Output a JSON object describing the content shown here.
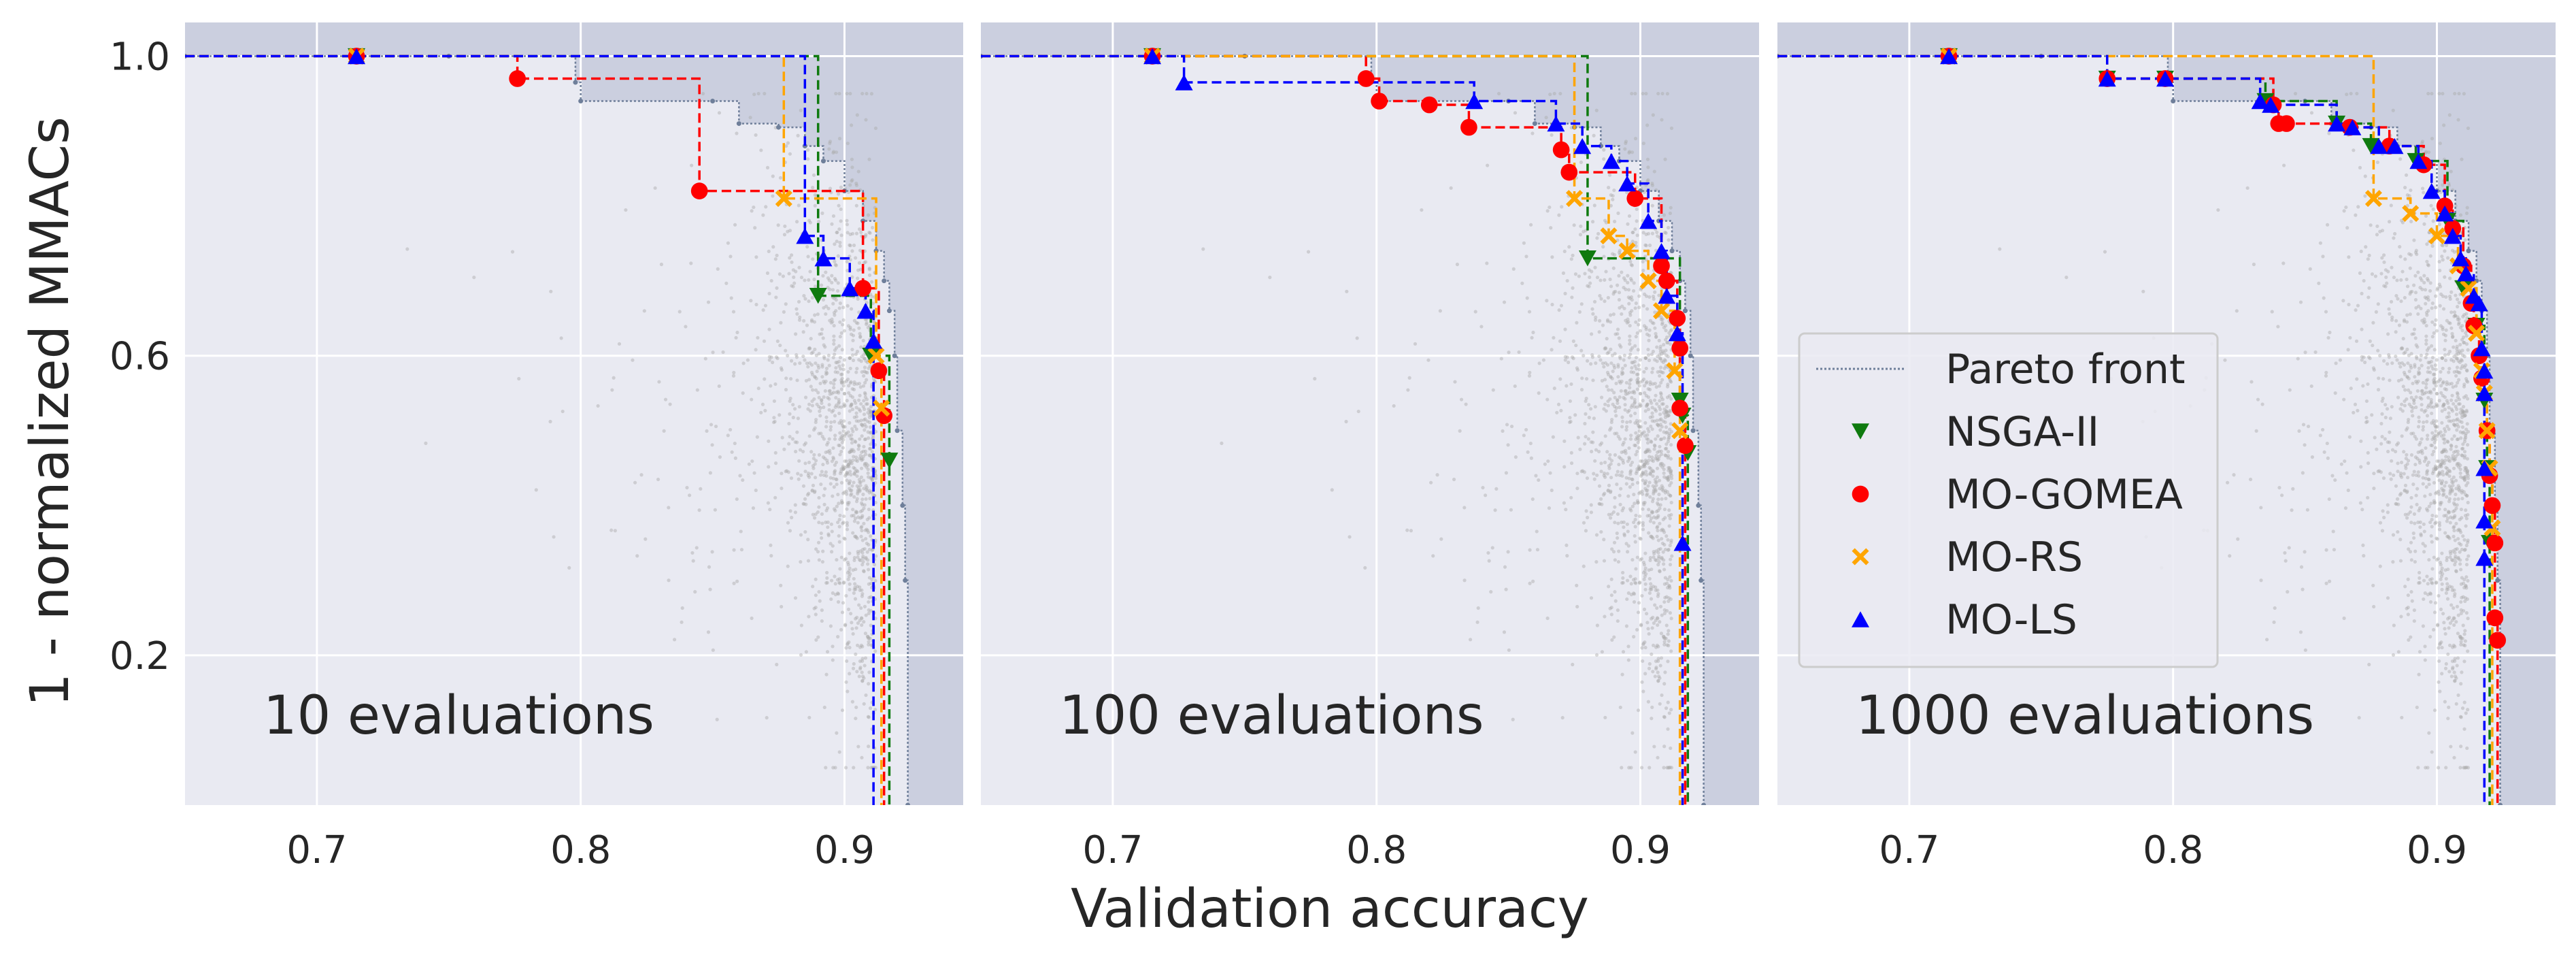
{
  "chart_data": {
    "type": "scatter",
    "ylabel": "1 - normalized MMACs",
    "xlabel": "Validation accuracy",
    "xticks": [
      0.7,
      0.8,
      0.9
    ],
    "xtick_labels": [
      "0.7",
      "0.8",
      "0.9"
    ],
    "yticks": [
      1.0,
      0.6,
      0.2
    ],
    "ytick_labels": [
      "1.0",
      "0.6",
      "0.2"
    ],
    "xlim": [
      0.65,
      0.945
    ],
    "ylim": [
      0.0,
      1.045
    ],
    "legend_position": "center-left of third panel",
    "legend": [
      {
        "label": "Pareto front",
        "color": "#6f7f9a",
        "marker": "line"
      },
      {
        "label": "NSGA-II",
        "color": "#0f7a0f",
        "marker": "v"
      },
      {
        "label": "MO-GOMEA",
        "color": "#ff0000",
        "marker": "o"
      },
      {
        "label": "MO-RS",
        "color": "#ffa500",
        "marker": "x"
      },
      {
        "label": "MO-LS",
        "color": "#0000ff",
        "marker": "^"
      }
    ],
    "background_cloud": {
      "color": "#aaaaaa",
      "description": "samples"
    },
    "pareto_front": [
      [
        0.65,
        1.0
      ],
      [
        0.75,
        1.0
      ],
      [
        0.798,
        0.965
      ],
      [
        0.8,
        0.94
      ],
      [
        0.85,
        0.94
      ],
      [
        0.86,
        0.91
      ],
      [
        0.875,
        0.905
      ],
      [
        0.885,
        0.88
      ],
      [
        0.892,
        0.86
      ],
      [
        0.9,
        0.82
      ],
      [
        0.907,
        0.78
      ],
      [
        0.912,
        0.74
      ],
      [
        0.915,
        0.7
      ],
      [
        0.917,
        0.66
      ],
      [
        0.919,
        0.6
      ],
      [
        0.92,
        0.5
      ],
      [
        0.922,
        0.4
      ],
      [
        0.923,
        0.3
      ],
      [
        0.924,
        0.0
      ]
    ],
    "panels": [
      {
        "annotation": "10 evaluations",
        "series": [
          {
            "name": "NSGA-II",
            "points": [
              [
                0.715,
                1.0
              ],
              [
                0.89,
                0.68
              ],
              [
                0.91,
                0.6
              ],
              [
                0.917,
                0.46
              ]
            ]
          },
          {
            "name": "MO-GOMEA",
            "points": [
              [
                0.715,
                1.0
              ],
              [
                0.776,
                0.97
              ],
              [
                0.845,
                0.82
              ],
              [
                0.907,
                0.69
              ],
              [
                0.913,
                0.58
              ],
              [
                0.915,
                0.52
              ]
            ]
          },
          {
            "name": "MO-RS",
            "points": [
              [
                0.715,
                1.0
              ],
              [
                0.877,
                0.81
              ],
              [
                0.912,
                0.6
              ],
              [
                0.914,
                0.53
              ]
            ]
          },
          {
            "name": "MO-LS",
            "points": [
              [
                0.715,
                1.0
              ],
              [
                0.885,
                0.76
              ],
              [
                0.892,
                0.73
              ],
              [
                0.902,
                0.69
              ],
              [
                0.908,
                0.66
              ],
              [
                0.911,
                0.62
              ]
            ]
          }
        ]
      },
      {
        "annotation": "100 evaluations",
        "series": [
          {
            "name": "NSGA-II",
            "points": [
              [
                0.715,
                1.0
              ],
              [
                0.88,
                0.73
              ],
              [
                0.915,
                0.54
              ],
              [
                0.916,
                0.52
              ],
              [
                0.918,
                0.47
              ]
            ]
          },
          {
            "name": "MO-GOMEA",
            "points": [
              [
                0.715,
                1.0
              ],
              [
                0.796,
                0.97
              ],
              [
                0.801,
                0.94
              ],
              [
                0.82,
                0.935
              ],
              [
                0.835,
                0.905
              ],
              [
                0.87,
                0.875
              ],
              [
                0.873,
                0.845
              ],
              [
                0.898,
                0.81
              ],
              [
                0.908,
                0.72
              ],
              [
                0.91,
                0.7
              ],
              [
                0.914,
                0.65
              ],
              [
                0.915,
                0.61
              ],
              [
                0.915,
                0.53
              ],
              [
                0.917,
                0.48
              ]
            ]
          },
          {
            "name": "MO-RS",
            "points": [
              [
                0.715,
                1.0
              ],
              [
                0.875,
                0.81
              ],
              [
                0.888,
                0.76
              ],
              [
                0.895,
                0.74
              ],
              [
                0.903,
                0.7
              ],
              [
                0.908,
                0.66
              ],
              [
                0.913,
                0.58
              ],
              [
                0.915,
                0.5
              ]
            ]
          },
          {
            "name": "MO-LS",
            "points": [
              [
                0.715,
                1.0
              ],
              [
                0.727,
                0.965
              ],
              [
                0.837,
                0.94
              ],
              [
                0.868,
                0.91
              ],
              [
                0.878,
                0.88
              ],
              [
                0.889,
                0.86
              ],
              [
                0.895,
                0.83
              ],
              [
                0.903,
                0.78
              ],
              [
                0.908,
                0.74
              ],
              [
                0.91,
                0.68
              ],
              [
                0.914,
                0.63
              ],
              [
                0.916,
                0.35
              ]
            ]
          }
        ]
      },
      {
        "annotation": "1000 evaluations",
        "series": [
          {
            "name": "NSGA-II",
            "points": [
              [
                0.715,
                1.0
              ],
              [
                0.775,
                0.97
              ],
              [
                0.797,
                0.97
              ],
              [
                0.835,
                0.94
              ],
              [
                0.862,
                0.91
              ],
              [
                0.875,
                0.88
              ],
              [
                0.892,
                0.86
              ],
              [
                0.904,
                0.78
              ],
              [
                0.91,
                0.69
              ],
              [
                0.915,
                0.64
              ],
              [
                0.918,
                0.54
              ],
              [
                0.919,
                0.45
              ],
              [
                0.92,
                0.35
              ]
            ]
          },
          {
            "name": "MO-GOMEA",
            "points": [
              [
                0.715,
                1.0
              ],
              [
                0.775,
                0.97
              ],
              [
                0.797,
                0.97
              ],
              [
                0.838,
                0.935
              ],
              [
                0.84,
                0.91
              ],
              [
                0.843,
                0.91
              ],
              [
                0.867,
                0.905
              ],
              [
                0.882,
                0.88
              ],
              [
                0.895,
                0.855
              ],
              [
                0.903,
                0.8
              ],
              [
                0.906,
                0.77
              ],
              [
                0.91,
                0.72
              ],
              [
                0.913,
                0.67
              ],
              [
                0.914,
                0.64
              ],
              [
                0.916,
                0.6
              ],
              [
                0.917,
                0.57
              ],
              [
                0.919,
                0.5
              ],
              [
                0.92,
                0.44
              ],
              [
                0.921,
                0.4
              ],
              [
                0.922,
                0.35
              ],
              [
                0.922,
                0.25
              ],
              [
                0.923,
                0.22
              ]
            ]
          },
          {
            "name": "MO-RS",
            "points": [
              [
                0.715,
                1.0
              ],
              [
                0.876,
                0.81
              ],
              [
                0.89,
                0.79
              ],
              [
                0.9,
                0.76
              ],
              [
                0.908,
                0.72
              ],
              [
                0.912,
                0.69
              ],
              [
                0.915,
                0.63
              ],
              [
                0.917,
                0.58
              ],
              [
                0.918,
                0.55
              ],
              [
                0.919,
                0.5
              ],
              [
                0.92,
                0.45
              ],
              [
                0.921,
                0.37
              ]
            ]
          },
          {
            "name": "MO-LS",
            "points": [
              [
                0.715,
                1.0
              ],
              [
                0.775,
                0.97
              ],
              [
                0.797,
                0.97
              ],
              [
                0.833,
                0.94
              ],
              [
                0.837,
                0.935
              ],
              [
                0.862,
                0.91
              ],
              [
                0.868,
                0.905
              ],
              [
                0.878,
                0.88
              ],
              [
                0.884,
                0.88
              ],
              [
                0.893,
                0.86
              ],
              [
                0.898,
                0.82
              ],
              [
                0.903,
                0.79
              ],
              [
                0.906,
                0.76
              ],
              [
                0.909,
                0.73
              ],
              [
                0.911,
                0.71
              ],
              [
                0.914,
                0.68
              ],
              [
                0.916,
                0.67
              ],
              [
                0.917,
                0.61
              ],
              [
                0.918,
                0.58
              ],
              [
                0.918,
                0.55
              ],
              [
                0.918,
                0.45
              ],
              [
                0.918,
                0.38
              ],
              [
                0.918,
                0.33
              ]
            ]
          }
        ]
      }
    ]
  },
  "colors": {
    "panel_bg": "#e9eaf2",
    "dominated_region": "#cbcfdf",
    "grid": "#ffffff",
    "NSGA-II": "#0f7a0f",
    "MO-GOMEA": "#ff0000",
    "MO-RS": "#ffa500",
    "MO-LS": "#0000ff",
    "pareto": "#6f7f9a",
    "cloud": "#aaaaaa"
  }
}
